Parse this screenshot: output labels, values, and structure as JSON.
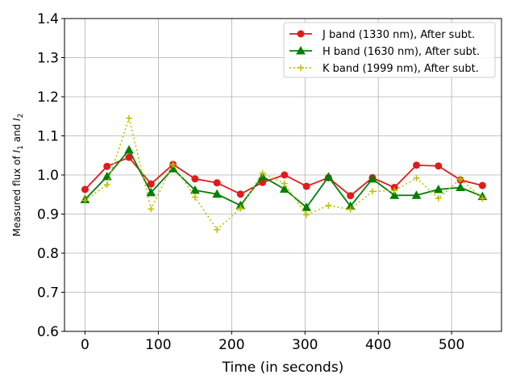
{
  "chart_data": {
    "type": "line",
    "title": "",
    "xlabel": "Time (in seconds)",
    "ylabel": "Measured flux of I1 and I2",
    "ylabel_parts": {
      "prefix": "Measured flux of ",
      "v1": "I",
      "s1": "1",
      "mid": " and ",
      "v2": "I",
      "s2": "2"
    },
    "xlim": [
      -28,
      568
    ],
    "ylim": [
      0.6,
      1.4
    ],
    "xticks": [
      0,
      100,
      200,
      300,
      400,
      500
    ],
    "yticks": [
      0.6,
      0.7,
      0.8,
      0.9,
      1.0,
      1.1,
      1.2,
      1.3,
      1.4
    ],
    "xtick_labels": [
      "0",
      "100",
      "200",
      "300",
      "400",
      "500"
    ],
    "ytick_labels": [
      "0.6",
      "0.7",
      "0.8",
      "0.9",
      "1.0",
      "1.1",
      "1.2",
      "1.3",
      "1.4"
    ],
    "grid": true,
    "legend_position": "top-right",
    "x": [
      0,
      30,
      60,
      90,
      120,
      150,
      180,
      212,
      242,
      272,
      302,
      332,
      362,
      392,
      422,
      452,
      482,
      512,
      542
    ],
    "series": [
      {
        "name": "J band (1330 nm), After subt.",
        "color": "#e31a1c",
        "marker": "circle",
        "linestyle": "solid",
        "values": [
          0.963,
          1.022,
          1.045,
          0.977,
          1.027,
          0.99,
          0.98,
          0.951,
          0.981,
          1.0,
          0.971,
          0.993,
          0.947,
          0.993,
          0.968,
          1.025,
          1.023,
          0.987,
          0.973
        ]
      },
      {
        "name": "H band (1630 nm), After subt.",
        "color": "#008000",
        "marker": "triangle",
        "linestyle": "solid",
        "values": [
          0.937,
          0.996,
          1.064,
          0.955,
          1.016,
          0.961,
          0.951,
          0.922,
          0.996,
          0.964,
          0.917,
          0.995,
          0.92,
          0.99,
          0.948,
          0.948,
          0.963,
          0.968,
          0.945
        ]
      },
      {
        "name": "K band (1999 nm), After subt.",
        "color": "#bfbf00",
        "marker": "plus",
        "linestyle": "dotted",
        "values": [
          0.935,
          0.975,
          1.145,
          0.913,
          1.027,
          0.943,
          0.86,
          0.915,
          1.005,
          0.978,
          0.898,
          0.922,
          0.912,
          0.958,
          0.96,
          0.992,
          0.94,
          0.99,
          0.94
        ]
      }
    ]
  }
}
